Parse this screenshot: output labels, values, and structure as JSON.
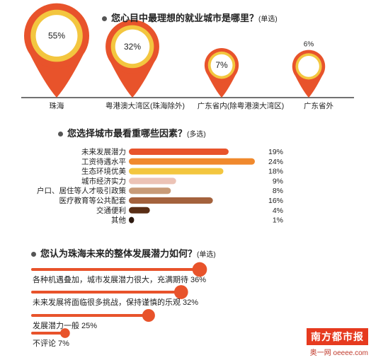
{
  "section1": {
    "title": "您心目中最理想的就业城市是哪里？",
    "note": "(单选)",
    "chart_data": {
      "type": "bubble-pin",
      "categories": [
        "珠海",
        "粤港澳大湾区(珠海除外)",
        "广东省内(除粤港澳大湾区)",
        "广东省外"
      ],
      "values": [
        55,
        32,
        7,
        6
      ],
      "value_labels": [
        "55%",
        "32%",
        "7%",
        "6%"
      ]
    }
  },
  "section2": {
    "title": "您选择城市最看重哪些因素？",
    "note": "(多选)",
    "chart_data": {
      "type": "bar",
      "categories": [
        "未来发展潜力",
        "工资待遇水平",
        "生态环境优美",
        "城市经济实力",
        "户口、居住等人才吸引政策",
        "医疗教育等公共配套",
        "交通便利",
        "其他"
      ],
      "values": [
        19,
        24,
        18,
        9,
        8,
        16,
        4,
        1
      ],
      "value_labels": [
        "19%",
        "24%",
        "18%",
        "9%",
        "8%",
        "16%",
        "4%",
        "1%"
      ],
      "colors": [
        "#e8532b",
        "#f0892d",
        "#f3c63f",
        "#ecc3b6",
        "#c89b78",
        "#a4623d",
        "#5a2e15",
        "#2d1a10"
      ]
    }
  },
  "section3": {
    "title": "您认为珠海未来的整体发展潜力如何？",
    "note": "(单选)",
    "chart_data": {
      "type": "slider",
      "categories": [
        "各种机遇叠加，城市发展潜力很大，充满期待",
        "未来发展将面临很多挑战，保持谨慎的乐观",
        "发展潜力一般",
        "不评论"
      ],
      "values": [
        36,
        32,
        25,
        7
      ],
      "value_labels": [
        "36%",
        "32%",
        "25%",
        "7%"
      ],
      "display_labels": [
        "各种机遇叠加，城市发展潜力很大，充满期待 36%",
        "未来发展将面临很多挑战，保持谨慎的乐观 32%",
        "发展潜力一般 25%",
        "不评论 7%"
      ],
      "color": "#e8532b"
    }
  },
  "watermark": {
    "brand": "南方都市报",
    "sub": "奥一网 oeeee.com"
  }
}
